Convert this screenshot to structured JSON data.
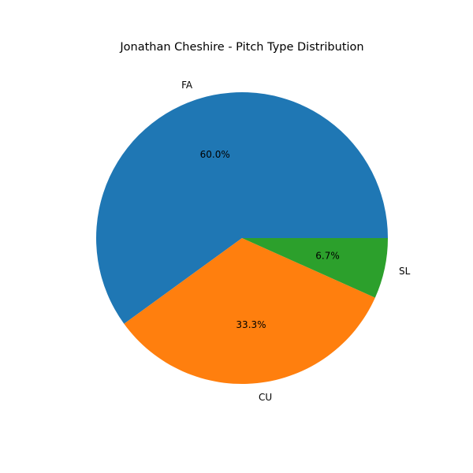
{
  "chart_data": {
    "type": "pie",
    "title": "Jonathan Cheshire - Pitch Type Distribution",
    "categories": [
      "FA",
      "CU",
      "SL"
    ],
    "values": [
      60.0,
      33.3,
      6.7
    ],
    "percent_labels": [
      "60.0%",
      "33.3%",
      "6.7%"
    ],
    "colors": [
      "#1f77b4",
      "#ff7f0e",
      "#2ca02c"
    ],
    "start_angle_deg": 0,
    "direction": "counterclockwise"
  }
}
